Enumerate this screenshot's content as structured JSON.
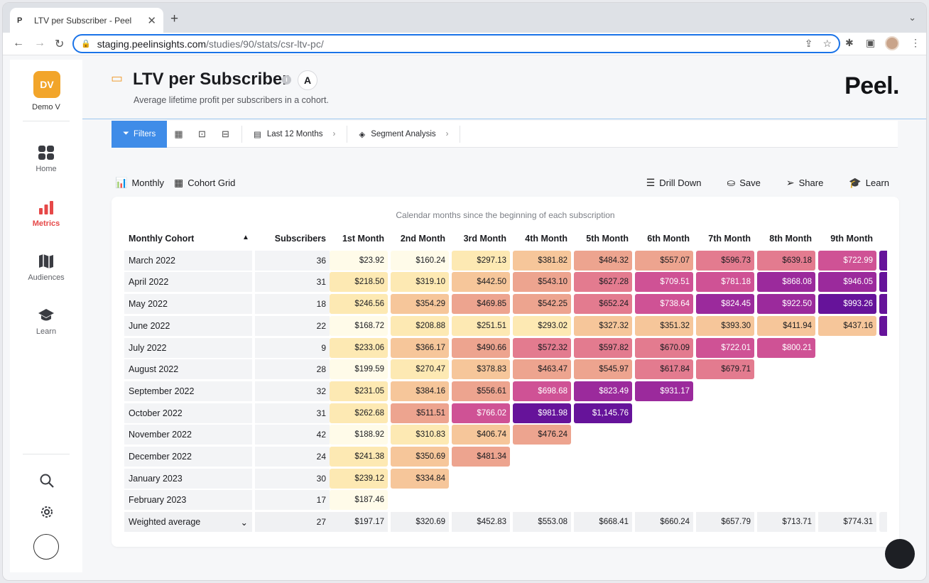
{
  "browser": {
    "tab_favicon": "P",
    "tab_title": "LTV per Subscriber - Peel",
    "url_host": "staging.peelinsights.com",
    "url_path": "/studies/90/stats/csr-ltv-pc/"
  },
  "sidebar": {
    "org_initials": "DV",
    "org_name": "Demo V",
    "nav": [
      {
        "label": "Home",
        "icon": "home-grid-icon",
        "active": false
      },
      {
        "label": "Metrics",
        "icon": "bar-chart-icon",
        "active": true
      },
      {
        "label": "Audiences",
        "icon": "map-icon",
        "active": false
      },
      {
        "label": "Learn",
        "icon": "graduation-cap-icon",
        "active": false
      }
    ],
    "accent": "#e64848"
  },
  "page": {
    "title": "LTV per Subscriber",
    "subtitle": "Average lifetime profit per subscribers in a cohort.",
    "badge": "A",
    "brand": "Peel."
  },
  "filters": {
    "filters_label": "Filters",
    "date_range": "Last 12 Months",
    "segment": "Segment Analysis"
  },
  "view": {
    "monthly": "Monthly",
    "cohort_grid": "Cohort Grid",
    "drill_down": "Drill Down",
    "save": "Save",
    "share": "Share",
    "learn": "Learn"
  },
  "table": {
    "caption": "Calendar months since the beginning of each subscription",
    "col_cohort": "Monthly Cohort",
    "col_subscribers": "Subscribers",
    "months": [
      "1st Month",
      "2nd Month",
      "3rd Month",
      "4th Month",
      "5th Month",
      "6th Month",
      "7th Month",
      "8th Month",
      "9th Month"
    ],
    "rows": [
      {
        "cohort": "March 2022",
        "subs": "36",
        "vals": [
          "$23.92",
          "$160.24",
          "$297.13",
          "$381.82",
          "$484.32",
          "$557.07",
          "$596.73",
          "$639.18",
          "$722.99"
        ]
      },
      {
        "cohort": "April 2022",
        "subs": "31",
        "vals": [
          "$218.50",
          "$319.10",
          "$442.50",
          "$543.10",
          "$627.28",
          "$709.51",
          "$781.18",
          "$868.08",
          "$946.05"
        ]
      },
      {
        "cohort": "May 2022",
        "subs": "18",
        "vals": [
          "$246.56",
          "$354.29",
          "$469.85",
          "$542.25",
          "$652.24",
          "$738.64",
          "$824.45",
          "$922.50",
          "$993.26"
        ]
      },
      {
        "cohort": "June 2022",
        "subs": "22",
        "vals": [
          "$168.72",
          "$208.88",
          "$251.51",
          "$293.02",
          "$327.32",
          "$351.32",
          "$393.30",
          "$411.94",
          "$437.16"
        ]
      },
      {
        "cohort": "July 2022",
        "subs": "9",
        "vals": [
          "$233.06",
          "$366.17",
          "$490.66",
          "$572.32",
          "$597.82",
          "$670.09",
          "$722.01",
          "$800.21"
        ]
      },
      {
        "cohort": "August 2022",
        "subs": "28",
        "vals": [
          "$199.59",
          "$270.47",
          "$378.83",
          "$463.47",
          "$545.97",
          "$617.84",
          "$679.71"
        ]
      },
      {
        "cohort": "September 2022",
        "subs": "32",
        "vals": [
          "$231.05",
          "$384.16",
          "$556.61",
          "$698.68",
          "$823.49",
          "$931.17"
        ]
      },
      {
        "cohort": "October 2022",
        "subs": "31",
        "vals": [
          "$262.68",
          "$511.51",
          "$766.02",
          "$981.98",
          "$1,145.76"
        ]
      },
      {
        "cohort": "November 2022",
        "subs": "42",
        "vals": [
          "$188.92",
          "$310.83",
          "$406.74",
          "$476.24"
        ]
      },
      {
        "cohort": "December 2022",
        "subs": "24",
        "vals": [
          "$241.38",
          "$350.69",
          "$481.34"
        ]
      },
      {
        "cohort": "January 2023",
        "subs": "30",
        "vals": [
          "$239.12",
          "$334.84"
        ]
      },
      {
        "cohort": "February 2023",
        "subs": "17",
        "vals": [
          "$187.46"
        ]
      }
    ],
    "avg_label": "Weighted average",
    "avg_subs": "27",
    "avg_vals": [
      "$197.17",
      "$320.69",
      "$452.83",
      "$553.08",
      "$668.41",
      "$660.24",
      "$657.79",
      "$713.71",
      "$774.31"
    ],
    "heat_scale": [
      "#fffbe9",
      "#fde9b3",
      "#f6c69a",
      "#eda48f",
      "#e37b8f",
      "#cf5295",
      "#9b2a9c",
      "#66139a"
    ]
  }
}
